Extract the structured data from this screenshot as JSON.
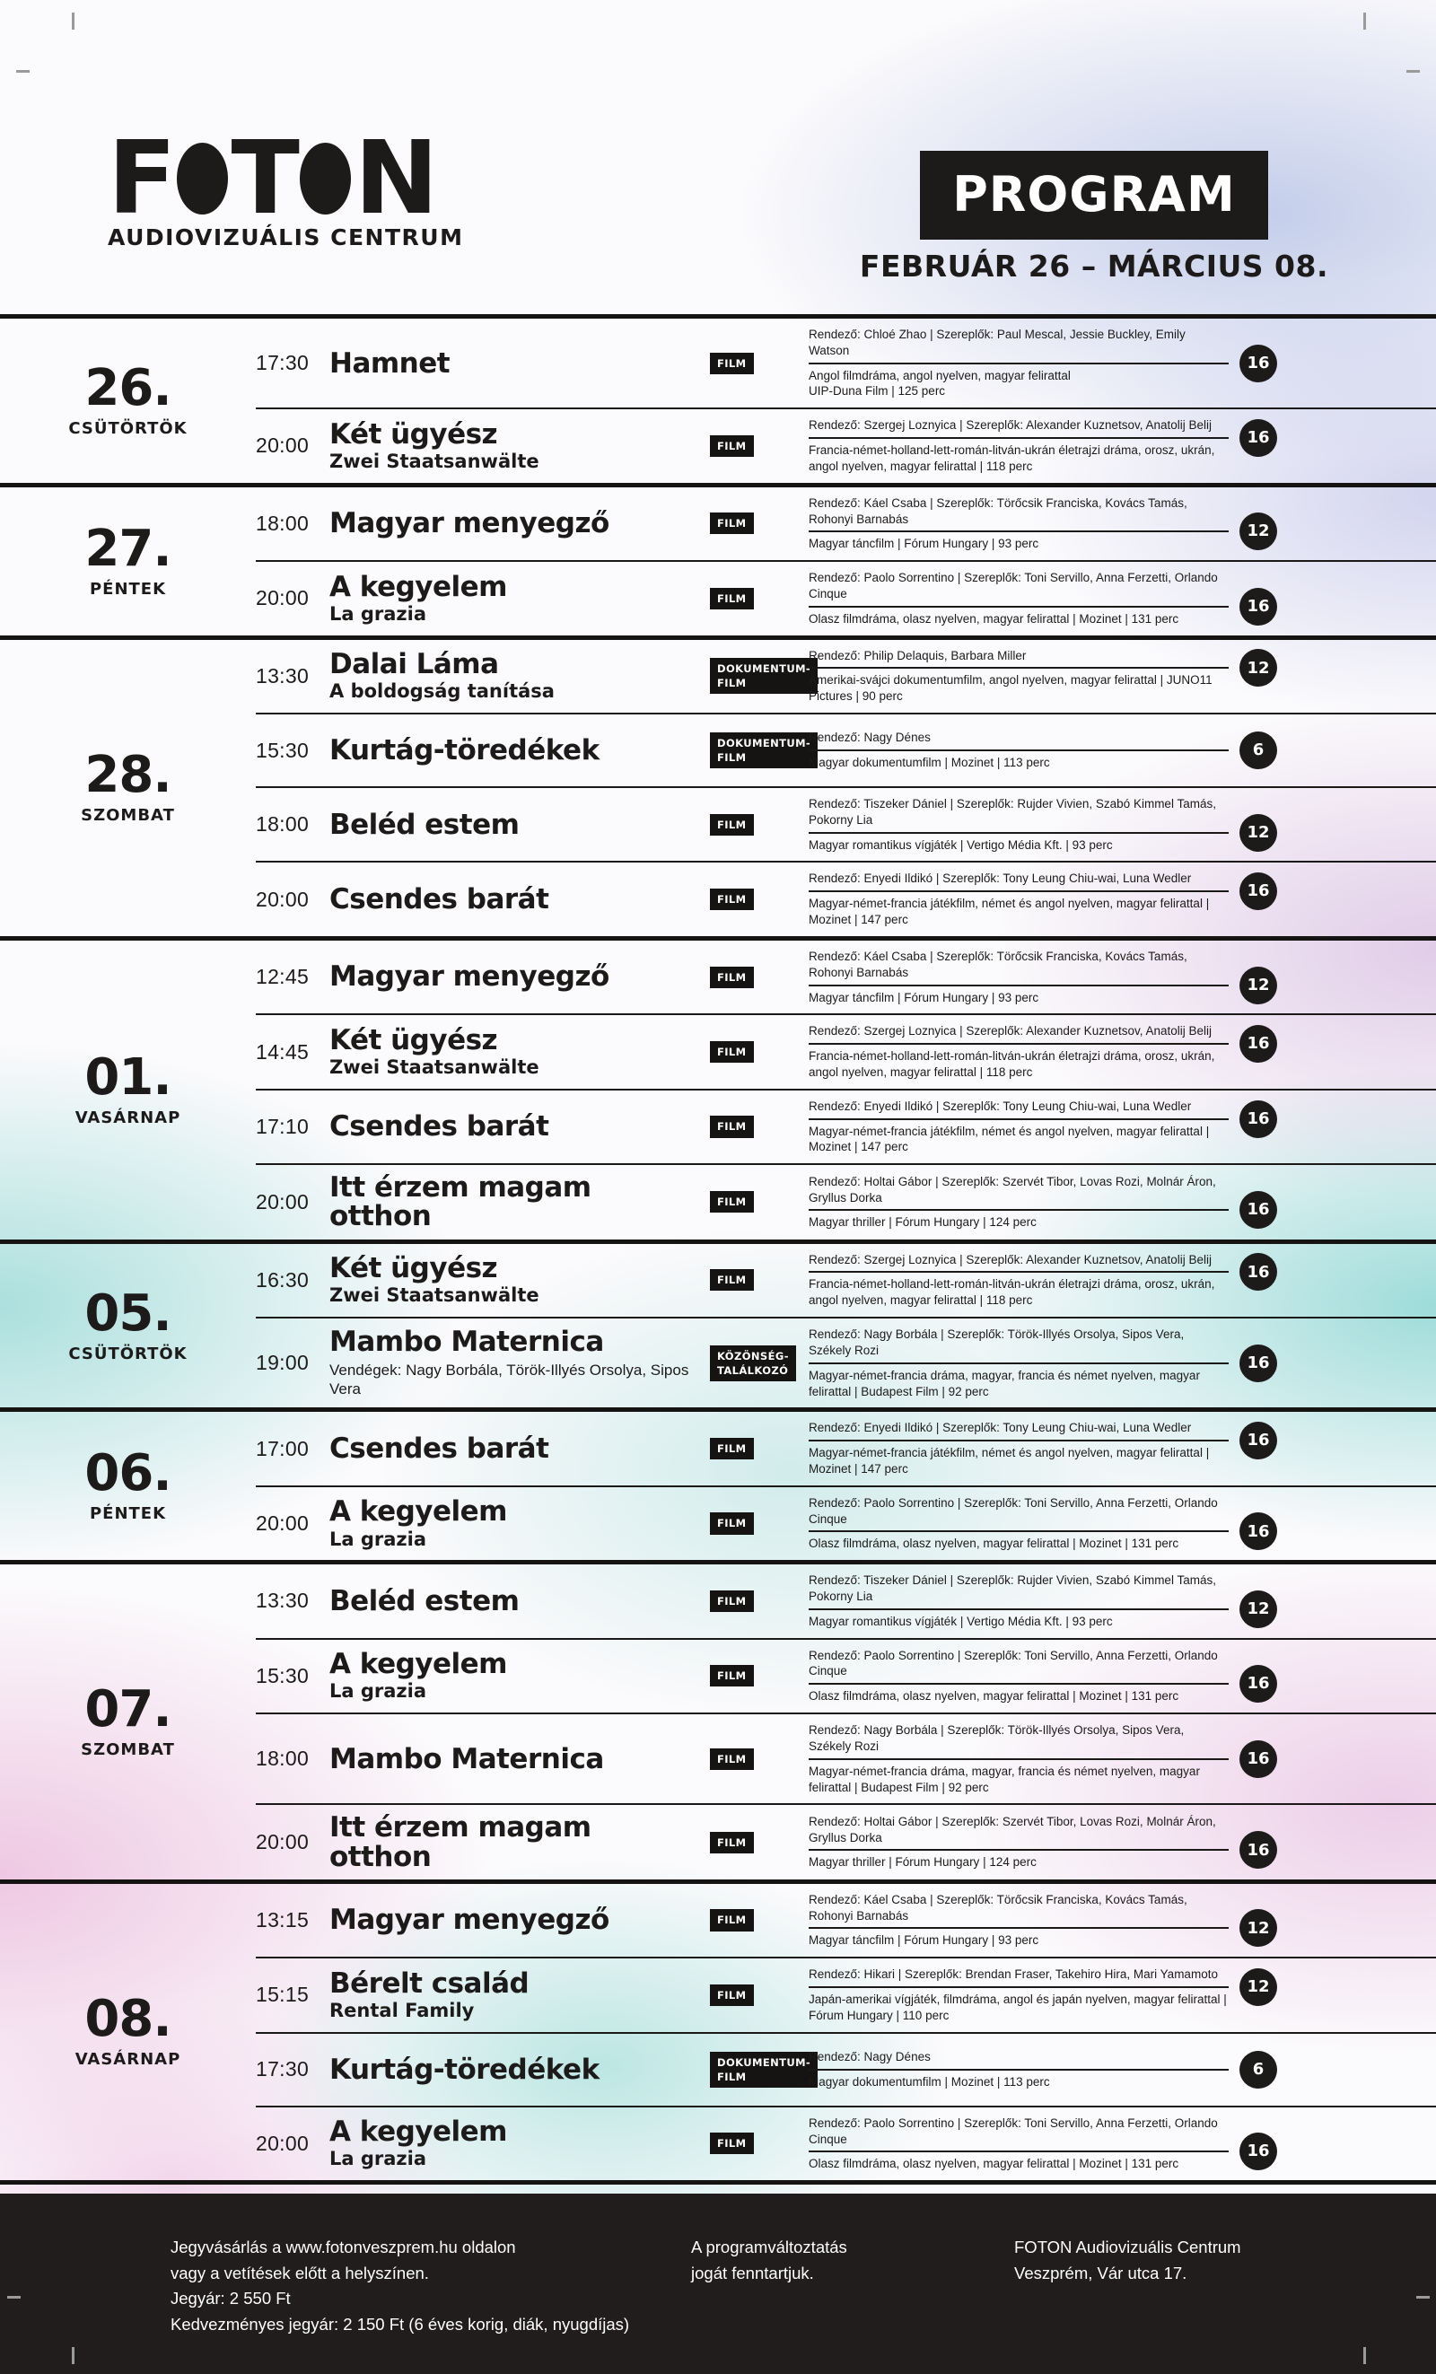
{
  "colors": {
    "ink": "#1d1b1a",
    "footer_bg": "#211d1d",
    "badge_bg": "#1d1b1a",
    "tag_bg": "#161413"
  },
  "header": {
    "logo_letters": [
      "F",
      "O",
      "T",
      "O",
      "N"
    ],
    "logo_subtitle": "AUDIOVIZUÁLIS CENTRUM",
    "program_label": "PROGRAM",
    "date_range": "FEBRUÁR 26 – MÁRCIUS 08."
  },
  "days": [
    {
      "number": "26.",
      "name": "CSÜTÖRTÖK",
      "entries": [
        {
          "time": "17:30",
          "title": "Hamnet",
          "tag": "FILM",
          "credits": "Rendező: Chloé Zhao | Szereplők: Paul Mescal, Jessie Buckley, Emily Watson",
          "info": "Angol filmdráma, angol nyelven, magyar felirattal\nUIP-Duna Film | 125 perc",
          "rating": "16"
        },
        {
          "time": "20:00",
          "title": "Két ügyész",
          "subtitle": "Zwei Staatsanwälte",
          "tag": "FILM",
          "credits": "Rendező: Szergej Loznyica | Szereplők: Alexander Kuznetsov, Anatolij Belij",
          "info": "Francia-német-holland-lett-román-litván-ukrán életrajzi dráma, orosz, ukrán, angol nyelven, magyar felirattal | 118 perc",
          "rating": "16"
        }
      ]
    },
    {
      "number": "27.",
      "name": "PÉNTEK",
      "entries": [
        {
          "time": "18:00",
          "title": "Magyar menyegző",
          "tag": "FILM",
          "credits": "Rendező: Káel Csaba | Szereplők: Törőcsik Franciska, Kovács Tamás, Rohonyi Barnabás",
          "info": "Magyar táncfilm | Fórum Hungary | 93 perc",
          "rating": "12"
        },
        {
          "time": "20:00",
          "title": "A kegyelem",
          "subtitle": "La grazia",
          "tag": "FILM",
          "credits": "Rendező: Paolo Sorrentino | Szereplők: Toni Servillo, Anna Ferzetti, Orlando Cinque",
          "info": "Olasz filmdráma, olasz nyelven, magyar felirattal | Mozinet | 131 perc",
          "rating": "16"
        }
      ]
    },
    {
      "number": "28.",
      "name": "SZOMBAT",
      "entries": [
        {
          "time": "13:30",
          "title": "Dalai Láma",
          "subtitle": "A boldogság tanítása",
          "tag": "DOKUMENTUM-\nFILM",
          "credits": "Rendező: Philip Delaquis, Barbara Miller",
          "info": "Amerikai-svájci dokumentumfilm, angol nyelven, magyar felirattal | JUNO11 Pictures | 90 perc",
          "rating": "12"
        },
        {
          "time": "15:30",
          "title": "Kurtág-töredékek",
          "tag": "DOKUMENTUM-\nFILM",
          "credits": "Rendező: Nagy Dénes",
          "info": "Magyar dokumentumfilm | Mozinet | 113 perc",
          "rating": "6"
        },
        {
          "time": "18:00",
          "title": "Beléd estem",
          "tag": "FILM",
          "credits": "Rendező: Tiszeker Dániel | Szereplők: Rujder Vivien, Szabó Kimmel Tamás, Pokorny Lia",
          "info": "Magyar romantikus vígjáték | Vertigo Média Kft. | 93 perc",
          "rating": "12"
        },
        {
          "time": "20:00",
          "title": "Csendes barát",
          "tag": "FILM",
          "credits": "Rendező: Enyedi Ildikó | Szereplők: Tony Leung Chiu-wai, Luna Wedler",
          "info": "Magyar-német-francia játékfilm, német és angol nyelven, magyar felirattal | Mozinet | 147 perc",
          "rating": "16"
        }
      ]
    },
    {
      "number": "01.",
      "name": "VASÁRNAP",
      "entries": [
        {
          "time": "12:45",
          "title": "Magyar menyegző",
          "tag": "FILM",
          "credits": "Rendező: Káel Csaba | Szereplők: Törőcsik Franciska, Kovács Tamás, Rohonyi Barnabás",
          "info": "Magyar táncfilm | Fórum Hungary | 93 perc",
          "rating": "12"
        },
        {
          "time": "14:45",
          "title": "Két ügyész",
          "subtitle": "Zwei Staatsanwälte",
          "tag": "FILM",
          "credits": "Rendező: Szergej Loznyica | Szereplők: Alexander Kuznetsov, Anatolij Belij",
          "info": "Francia-német-holland-lett-román-litván-ukrán életrajzi dráma, orosz, ukrán, angol nyelven, magyar felirattal | 118 perc",
          "rating": "16"
        },
        {
          "time": "17:10",
          "title": "Csendes barát",
          "tag": "FILM",
          "credits": "Rendező: Enyedi Ildikó | Szereplők: Tony Leung Chiu-wai, Luna Wedler",
          "info": "Magyar-német-francia játékfilm, német és angol nyelven, magyar felirattal | Mozinet | 147 perc",
          "rating": "16"
        },
        {
          "time": "20:00",
          "title": "Itt érzem magam otthon",
          "tag": "FILM",
          "credits": "Rendező: Holtai Gábor | Szereplők: Szervét Tibor, Lovas Rozi, Molnár Áron, Gryllus Dorka",
          "info": "Magyar thriller | Fórum Hungary | 124 perc",
          "rating": "16"
        }
      ]
    },
    {
      "number": "05.",
      "name": "CSÜTÖRTÖK",
      "entries": [
        {
          "time": "16:30",
          "title": "Két ügyész",
          "subtitle": "Zwei Staatsanwälte",
          "tag": "FILM",
          "credits": "Rendező: Szergej Loznyica | Szereplők: Alexander Kuznetsov, Anatolij Belij",
          "info": "Francia-német-holland-lett-román-litván-ukrán életrajzi dráma, orosz, ukrán, angol nyelven, magyar felirattal | 118 perc",
          "rating": "16"
        },
        {
          "time": "19:00",
          "title": "Mambo Maternica",
          "note": "Vendégek: Nagy Borbála, Török-Illyés Orsolya, Sipos Vera",
          "tag": "KÖZÖNSÉG-\nTALÁLKOZÓ",
          "credits": "Rendező: Nagy Borbála | Szereplők: Török-Illyés Orsolya, Sipos Vera, Székely Rozi",
          "info": "Magyar-német-francia dráma, magyar, francia és német nyelven, magyar felirattal | Budapest Film | 92 perc",
          "rating": "16"
        }
      ]
    },
    {
      "number": "06.",
      "name": "PÉNTEK",
      "entries": [
        {
          "time": "17:00",
          "title": "Csendes barát",
          "tag": "FILM",
          "credits": "Rendező: Enyedi Ildikó | Szereplők: Tony Leung Chiu-wai, Luna Wedler",
          "info": "Magyar-német-francia játékfilm, német és angol nyelven, magyar felirattal | Mozinet | 147 perc",
          "rating": "16"
        },
        {
          "time": "20:00",
          "title": "A kegyelem",
          "subtitle": "La grazia",
          "tag": "FILM",
          "credits": "Rendező: Paolo Sorrentino | Szereplők: Toni Servillo, Anna Ferzetti, Orlando Cinque",
          "info": "Olasz filmdráma, olasz nyelven, magyar felirattal | Mozinet | 131 perc",
          "rating": "16"
        }
      ]
    },
    {
      "number": "07.",
      "name": "SZOMBAT",
      "entries": [
        {
          "time": "13:30",
          "title": "Beléd estem",
          "tag": "FILM",
          "credits": "Rendező: Tiszeker Dániel | Szereplők: Rujder Vivien, Szabó Kimmel Tamás, Pokorny Lia",
          "info": "Magyar romantikus vígjáték | Vertigo Média Kft. | 93 perc",
          "rating": "12"
        },
        {
          "time": "15:30",
          "title": "A kegyelem",
          "subtitle": "La grazia",
          "tag": "FILM",
          "credits": "Rendező: Paolo Sorrentino | Szereplők: Toni Servillo, Anna Ferzetti, Orlando Cinque",
          "info": "Olasz filmdráma, olasz nyelven, magyar felirattal | Mozinet | 131 perc",
          "rating": "16"
        },
        {
          "time": "18:00",
          "title": "Mambo Maternica",
          "tag": "FILM",
          "credits": "Rendező: Nagy Borbála | Szereplők: Török-Illyés Orsolya, Sipos Vera, Székely Rozi",
          "info": "Magyar-német-francia dráma, magyar, francia és német nyelven, magyar felirattal | Budapest Film | 92 perc",
          "rating": "16"
        },
        {
          "time": "20:00",
          "title": "Itt érzem magam otthon",
          "tag": "FILM",
          "credits": "Rendező: Holtai Gábor | Szereplők: Szervét Tibor, Lovas Rozi, Molnár Áron, Gryllus Dorka",
          "info": "Magyar thriller | Fórum Hungary | 124 perc",
          "rating": "16"
        }
      ]
    },
    {
      "number": "08.",
      "name": "VASÁRNAP",
      "entries": [
        {
          "time": "13:15",
          "title": "Magyar menyegző",
          "tag": "FILM",
          "credits": "Rendező: Káel Csaba | Szereplők: Törőcsik Franciska, Kovács Tamás, Rohonyi Barnabás",
          "info": "Magyar táncfilm | Fórum Hungary | 93 perc",
          "rating": "12"
        },
        {
          "time": "15:15",
          "title": "Bérelt család",
          "subtitle": "Rental Family",
          "tag": "FILM",
          "credits": "Rendező: Hikari | Szereplők: Brendan Fraser, Takehiro Hira, Mari Yamamoto",
          "info": "Japán-amerikai vígjáték, filmdráma, angol és japán nyelven, magyar felirattal | Fórum Hungary | 110 perc",
          "rating": "12"
        },
        {
          "time": "17:30",
          "title": "Kurtág-töredékek",
          "tag": "DOKUMENTUM-\nFILM",
          "credits": "Rendező: Nagy Dénes",
          "info": "Magyar dokumentumfilm | Mozinet | 113 perc",
          "rating": "6"
        },
        {
          "time": "20:00",
          "title": "A kegyelem",
          "subtitle": "La grazia",
          "tag": "FILM",
          "credits": "Rendező: Paolo Sorrentino | Szereplők: Toni Servillo, Anna Ferzetti, Orlando Cinque",
          "info": "Olasz filmdráma, olasz nyelven, magyar felirattal | Mozinet | 131 perc",
          "rating": "16"
        }
      ]
    }
  ],
  "footer": {
    "tickets": "Jegyvásárlás a www.fotonveszprem.hu oldalon\nvagy a vetítések előtt a helyszínen.\nJegyár: 2 550 Ft\nKedvezményes jegyár: 2 150 Ft (6 éves korig, diák, nyugdíjas)",
    "notice": "A programváltoztatás\njogát fenntartjuk.",
    "address": "FOTON Audiovizuális Centrum\nVeszprém, Vár utca 17."
  }
}
